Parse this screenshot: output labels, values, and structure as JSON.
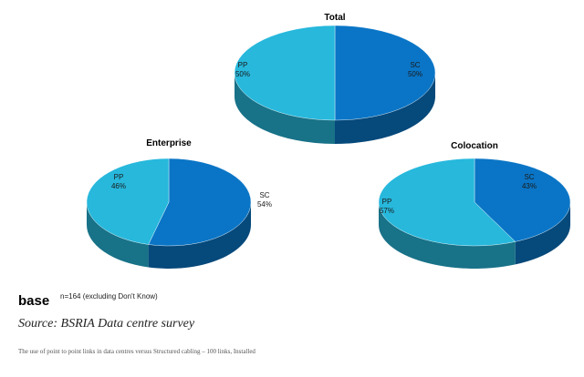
{
  "chart_data": [
    {
      "type": "pie",
      "title": "Total",
      "slices": [
        {
          "name": "SC",
          "value": 50,
          "label": "50%",
          "color": "#0a75c6"
        },
        {
          "name": "PP",
          "value": 50,
          "label": "50%",
          "color": "#27b8dc"
        }
      ]
    },
    {
      "type": "pie",
      "title": "Enterprise",
      "slices": [
        {
          "name": "SC",
          "value": 54,
          "label": "54%",
          "color": "#0a75c6"
        },
        {
          "name": "PP",
          "value": 46,
          "label": "46%",
          "color": "#27b8dc"
        }
      ]
    },
    {
      "type": "pie",
      "title": "Colocation",
      "slices": [
        {
          "name": "SC",
          "value": 43,
          "label": "43%",
          "color": "#0a75c6"
        },
        {
          "name": "PP",
          "value": 57,
          "label": "57%",
          "color": "#27b8dc"
        }
      ]
    }
  ],
  "notes": {
    "base_word": "base",
    "base_note": "n=164 (excluding Don't Know)",
    "source": "Source: BSRIA Data centre survey",
    "footnote": "The use of point to point links in data centres versus Structured cabling – 100 links, Installed"
  }
}
